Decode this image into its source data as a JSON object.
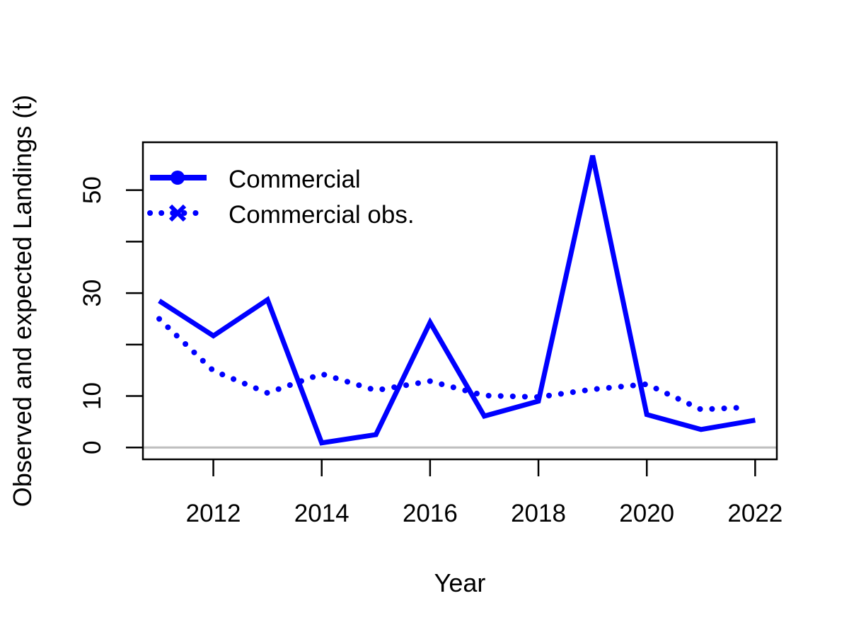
{
  "chart_data": {
    "type": "line",
    "title": "",
    "xlabel": "Year",
    "ylabel": "Observed and expected Landings (t)",
    "xlim": [
      2010.7,
      2022.4
    ],
    "ylim": [
      -2.3,
      59.3
    ],
    "x_ticks": [
      2012,
      2014,
      2016,
      2018,
      2020,
      2022
    ],
    "y_ticks": [
      0,
      10,
      20,
      30,
      40,
      50
    ],
    "y_tick_labels": [
      "0",
      "10",
      "",
      "30",
      "",
      "50"
    ],
    "grid": false,
    "reference_line": {
      "y": 0,
      "color": "#bebebe"
    },
    "legend_position": "top-left",
    "x": [
      2011,
      2012,
      2013,
      2014,
      2015,
      2016,
      2017,
      2018,
      2019,
      2020,
      2021,
      2022
    ],
    "series": [
      {
        "name": "Commercial",
        "style": "solid",
        "marker": "circle",
        "color": "#0000ff",
        "values": [
          28.5,
          21.7,
          28.7,
          0.9,
          2.5,
          24.3,
          6.1,
          9.0,
          56.7,
          6.4,
          3.5,
          5.3
        ],
        "x": [
          2011,
          2012,
          2013,
          2014,
          2015,
          2016,
          2017,
          2018,
          2019,
          2020,
          2021,
          2022
        ]
      },
      {
        "name": "Commercial obs.",
        "style": "dotted",
        "marker": "x",
        "color": "#0000ff",
        "values": [
          25.0,
          14.9,
          10.6,
          14.3,
          11.1,
          12.9,
          10.1,
          9.8,
          11.3,
          12.3,
          7.4,
          7.8
        ],
        "x": [
          2011,
          2012,
          2013,
          2014,
          2015,
          2016,
          2017,
          2018,
          2019,
          2020,
          2021,
          2021.85
        ]
      }
    ]
  }
}
